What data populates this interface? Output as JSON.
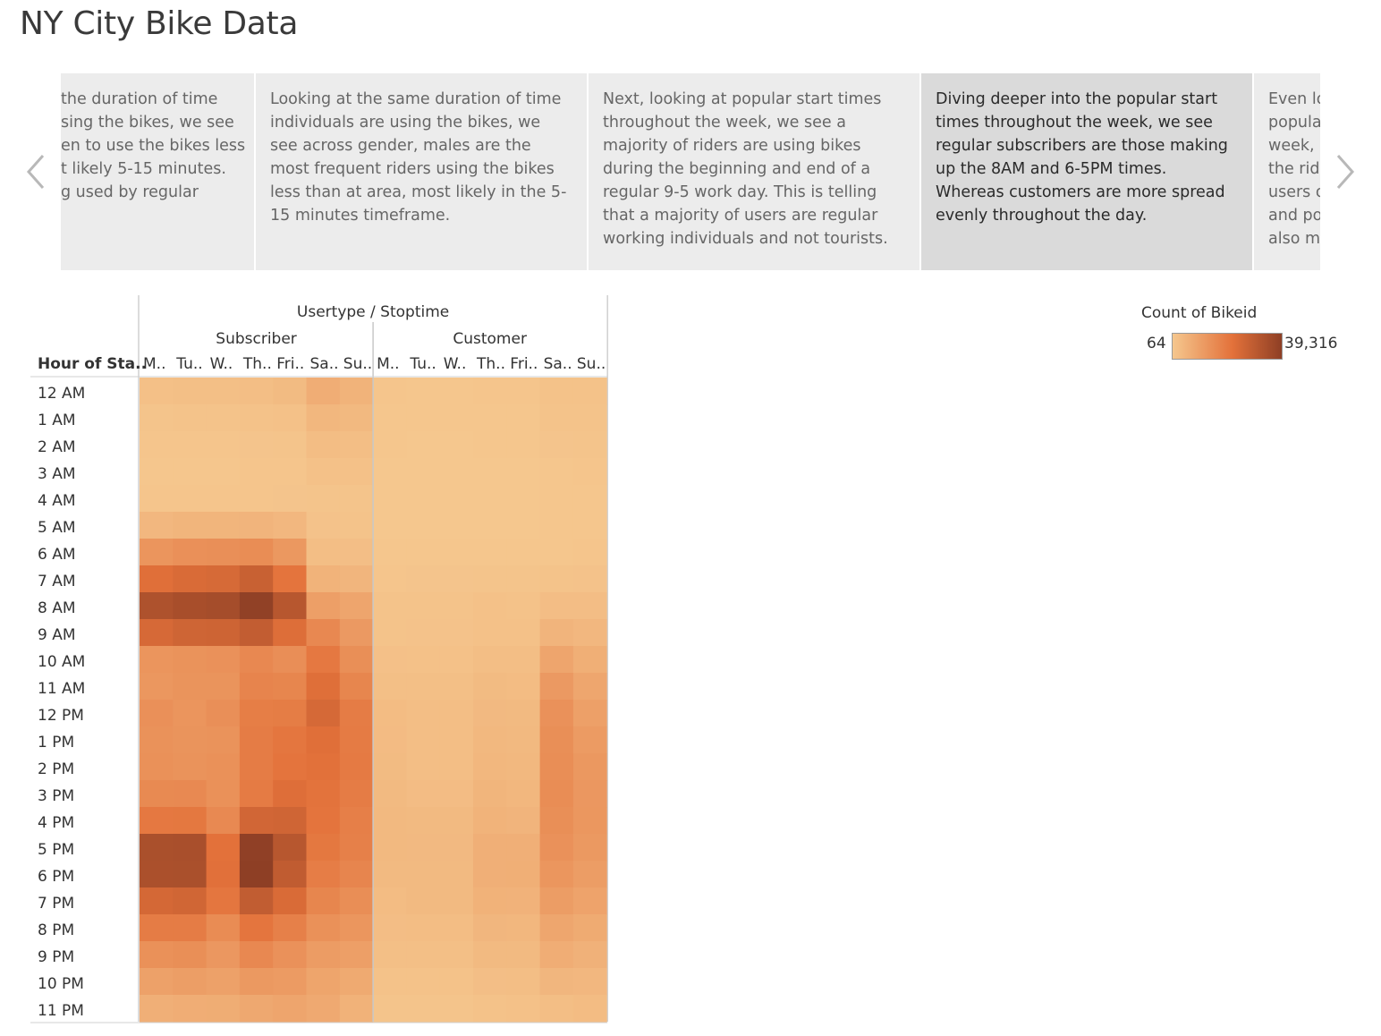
{
  "app": {
    "title": "NY City Bike Data"
  },
  "story": {
    "points": [
      "the duration of time\nsing the bikes, we see\nen to use the bikes less\nt likely 5-15 minutes.\ng used by regular",
      "Looking at the same duration of time individuals are using the bikes, we see across gender, males are the most frequent riders using the bikes less than at area, most likely in the 5-15 minutes timeframe.",
      "Next, looking at popular start times throughout the week, we see a majority of riders are using bikes during the beginning and end of a regular 9-5 work day. This is telling that a majority of users are regular working individuals and not tourists.",
      "Diving deeper into the popular start times throughout the week, we see regular subscribers are those making up the 8AM and 6-5PM times. Whereas customers are more spread evenly throughout the day.",
      "Even lo\npopula\nweek, r\nthe ride\nusers o\nand pos\nalso mo"
    ],
    "active_index": 3,
    "prev_icon": "chevron-left-icon",
    "next_icon": "chevron-right-icon"
  },
  "colors": {
    "ramp_low": "#f5c78e",
    "ramp_mid": "#e3713a",
    "ramp_high": "#8e3f25",
    "active_story_point": "#dadada",
    "story_point": "#ececec"
  },
  "chart_data": {
    "type": "heatmap",
    "column_header_title": "Usertype / Stoptime",
    "row_header_title": "Hour of Sta..",
    "groups": [
      "Subscriber",
      "Customer"
    ],
    "day_labels": [
      "M..",
      "Tu..",
      "W..",
      "Th..",
      "Fri..",
      "Sa..",
      "Su.."
    ],
    "hours": [
      "12 AM",
      "1 AM",
      "2 AM",
      "3 AM",
      "4 AM",
      "5 AM",
      "6 AM",
      "7 AM",
      "8 AM",
      "9 AM",
      "10 AM",
      "11 AM",
      "12 PM",
      "1 PM",
      "2 PM",
      "3 PM",
      "4 PM",
      "5 PM",
      "6 PM",
      "7 PM",
      "8 PM",
      "9 PM",
      "10 PM",
      "11 PM"
    ],
    "legend": {
      "title": "Count of Bikeid",
      "min_label": "64",
      "max_label": "39,316",
      "min": 64,
      "max": 39316
    },
    "values": [
      [
        1800,
        2000,
        2000,
        2400,
        3200,
        6500,
        5200,
        500,
        400,
        400,
        500,
        500,
        1300,
        1400
      ],
      [
        900,
        1100,
        1100,
        1300,
        1600,
        4200,
        3600,
        300,
        250,
        250,
        300,
        300,
        1000,
        1100
      ],
      [
        500,
        500,
        600,
        700,
        800,
        2600,
        2400,
        200,
        150,
        150,
        200,
        200,
        700,
        800
      ],
      [
        400,
        400,
        400,
        500,
        500,
        1600,
        1500,
        100,
        100,
        100,
        100,
        100,
        400,
        500
      ],
      [
        600,
        600,
        600,
        600,
        700,
        900,
        900,
        64,
        64,
        64,
        64,
        64,
        200,
        300
      ],
      [
        4000,
        4600,
        4600,
        4800,
        4000,
        1200,
        1100,
        100,
        100,
        100,
        100,
        100,
        200,
        300
      ],
      [
        12600,
        13800,
        14000,
        14600,
        11800,
        2400,
        2200,
        300,
        300,
        300,
        400,
        300,
        400,
        600
      ],
      [
        22300,
        23800,
        24300,
        27200,
        20800,
        5200,
        4500,
        600,
        700,
        700,
        900,
        800,
        1000,
        1200
      ],
      [
        32600,
        34000,
        34500,
        38600,
        30800,
        10200,
        8600,
        1000,
        1100,
        1100,
        1500,
        1300,
        2500,
        2500
      ],
      [
        24400,
        26000,
        26300,
        28600,
        22800,
        15800,
        11500,
        1100,
        1200,
        1200,
        1600,
        1600,
        4800,
        4000
      ],
      [
        12600,
        13200,
        13500,
        15800,
        14300,
        19800,
        14200,
        1700,
        1600,
        1600,
        2300,
        2300,
        8600,
        6200
      ],
      [
        12200,
        12800,
        12900,
        16800,
        16400,
        22500,
        16400,
        2100,
        2000,
        2000,
        3100,
        2800,
        11500,
        8400
      ],
      [
        13800,
        12600,
        14000,
        18500,
        18700,
        24500,
        18800,
        2800,
        2300,
        2300,
        3500,
        3300,
        13500,
        9800
      ],
      [
        13400,
        12800,
        13200,
        18800,
        20300,
        22300,
        19200,
        3000,
        2300,
        2300,
        3800,
        3600,
        14200,
        11200
      ],
      [
        13600,
        13200,
        13700,
        18800,
        20800,
        21800,
        19300,
        3100,
        2400,
        2400,
        4100,
        3900,
        14400,
        11800
      ],
      [
        15400,
        15600,
        13600,
        19200,
        22600,
        21200,
        18800,
        3300,
        2700,
        2700,
        4600,
        4200,
        14600,
        12000
      ],
      [
        19800,
        20000,
        15600,
        25400,
        25800,
        20800,
        18100,
        3600,
        3300,
        3300,
        5100,
        4800,
        14100,
        12200
      ],
      [
        33400,
        33800,
        21600,
        38800,
        30800,
        20000,
        17800,
        3600,
        3500,
        3500,
        6100,
        6000,
        13500,
        11600
      ],
      [
        33200,
        33400,
        22000,
        39316,
        28900,
        18600,
        16600,
        3300,
        3400,
        3400,
        6100,
        6200,
        12300,
        10600
      ],
      [
        24800,
        25600,
        20400,
        28800,
        23800,
        16400,
        14400,
        2900,
        3300,
        3300,
        5400,
        5300,
        10600,
        9000
      ],
      [
        18800,
        18900,
        15000,
        20600,
        17800,
        13600,
        12400,
        2500,
        2600,
        2600,
        4300,
        4200,
        8400,
        7200
      ],
      [
        13600,
        14200,
        12000,
        15800,
        13500,
        10800,
        10200,
        2000,
        2000,
        2000,
        3300,
        3300,
        6500,
        5500
      ],
      [
        9600,
        10400,
        9700,
        11600,
        11000,
        8700,
        7400,
        1300,
        1400,
        1400,
        2200,
        2300,
        4300,
        4000
      ],
      [
        6000,
        6500,
        6700,
        7900,
        8600,
        7600,
        5400,
        800,
        900,
        900,
        1300,
        1600,
        2400,
        2800
      ]
    ]
  }
}
